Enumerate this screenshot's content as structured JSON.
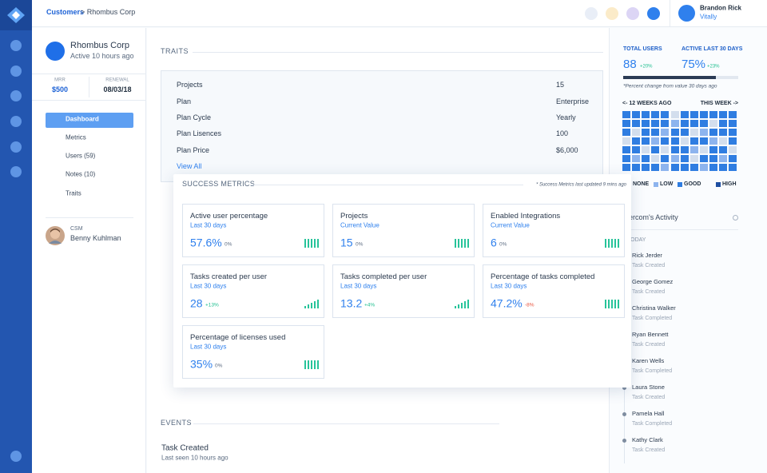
{
  "topbar": {
    "breadcrumb_link": "Customers",
    "breadcrumb_current": "> Rhombus Corp",
    "user_name": "Brandon Rick",
    "user_company": "Vitally"
  },
  "account": {
    "name": "Rhombus Corp",
    "status": "Active 10 hours ago",
    "mrr_label": "MRR",
    "mrr": "$500",
    "renewal_label": "RENEWAL",
    "renewal": "08/03/18"
  },
  "nav": [
    "Dashboard",
    "Metrics",
    "Users (59)",
    "Notes (10)",
    "Traits"
  ],
  "csm": {
    "label": "CSM",
    "name": "Benny Kuhlman"
  },
  "traits": {
    "title": "TRAITS",
    "rows": [
      [
        "Projects",
        "15"
      ],
      [
        "Plan",
        "Enterprise"
      ],
      [
        "Plan Cycle",
        "Yearly"
      ],
      [
        "Plan Lisences",
        "100"
      ],
      [
        "Plan Price",
        "$6,000"
      ]
    ],
    "link": "View All"
  },
  "success_metrics": {
    "title": "SUCCESS METRICS",
    "note": "* Success Metrics last updated 9 mins ago",
    "cards": [
      {
        "name": "Active user percentage",
        "period": "Last 30 days",
        "value": "57.6%",
        "change": "0%"
      },
      {
        "name": "Projects",
        "period": "Current Value",
        "value": "15",
        "change": "0%"
      },
      {
        "name": "Enabled Integrations",
        "period": "Current Value",
        "value": "6",
        "change": "0%"
      },
      {
        "name": "Tasks created per user",
        "period": "Last 30 days",
        "value": "28",
        "change": "+13%"
      },
      {
        "name": "Tasks completed per user",
        "period": "Last 30 days",
        "value": "13.2",
        "change": "+4%"
      },
      {
        "name": "Percentage of tasks completed",
        "period": "Last 30 days",
        "value": "47.2%",
        "change": "-8%"
      },
      {
        "name": "Percentage of licenses used",
        "period": "Last 30 days",
        "value": "35%",
        "change": "0%"
      }
    ]
  },
  "events": {
    "title": "EVENTS",
    "items": [
      {
        "name": "Task Created",
        "detail": "Last seen 10 hours ago"
      }
    ]
  },
  "stats": {
    "total_users_label": "TOTAL USERS",
    "total_users": "88",
    "total_users_change": "+20%",
    "active_label": "ACTIVE LAST 30 DAYS",
    "active": "75%",
    "active_change": "+23%",
    "note": "*Percent change from value 30 days ago"
  },
  "heatmap": {
    "start_label": "<- 12 WEEKS AGO",
    "end_label": "THIS WEEK ->",
    "levels": [
      "NONE",
      "LOW",
      "GOOD",
      "HIGH"
    ],
    "colors": [
      "#d3deed",
      "#8db4ee",
      "#2f7de1",
      "#1f4fa2"
    ],
    "cells": [
      [
        2,
        2,
        2,
        2,
        2,
        0,
        2,
        2,
        2,
        2,
        2,
        2
      ],
      [
        2,
        2,
        2,
        2,
        2,
        1,
        2,
        2,
        2,
        0,
        2,
        2
      ],
      [
        2,
        0,
        2,
        2,
        1,
        2,
        2,
        0,
        1,
        2,
        2,
        2
      ],
      [
        0,
        2,
        2,
        1,
        2,
        2,
        0,
        2,
        2,
        1,
        0,
        2
      ],
      [
        2,
        2,
        0,
        2,
        0,
        2,
        2,
        1,
        0,
        2,
        2,
        0
      ],
      [
        2,
        1,
        2,
        0,
        2,
        1,
        2,
        0,
        2,
        2,
        1,
        2
      ],
      [
        2,
        2,
        2,
        2,
        1,
        2,
        2,
        2,
        1,
        2,
        2,
        2
      ]
    ]
  },
  "activity": {
    "title": "Intercom's Activity",
    "day": "TODAY",
    "items": [
      {
        "name": "Rick Jerder",
        "action": "Task Created"
      },
      {
        "name": "George Gomez",
        "action": "Task Created"
      },
      {
        "name": "Christina Walker",
        "action": "Task Completed"
      },
      {
        "name": "Ryan Bennett",
        "action": "Task Created"
      },
      {
        "name": "Karen Wells",
        "action": "Task Completed"
      },
      {
        "name": "Laura Stone",
        "action": "Task Created"
      },
      {
        "name": "Pamela Hall",
        "action": "Task Completed"
      },
      {
        "name": "Kathy Clark",
        "action": "Task Created"
      }
    ]
  }
}
